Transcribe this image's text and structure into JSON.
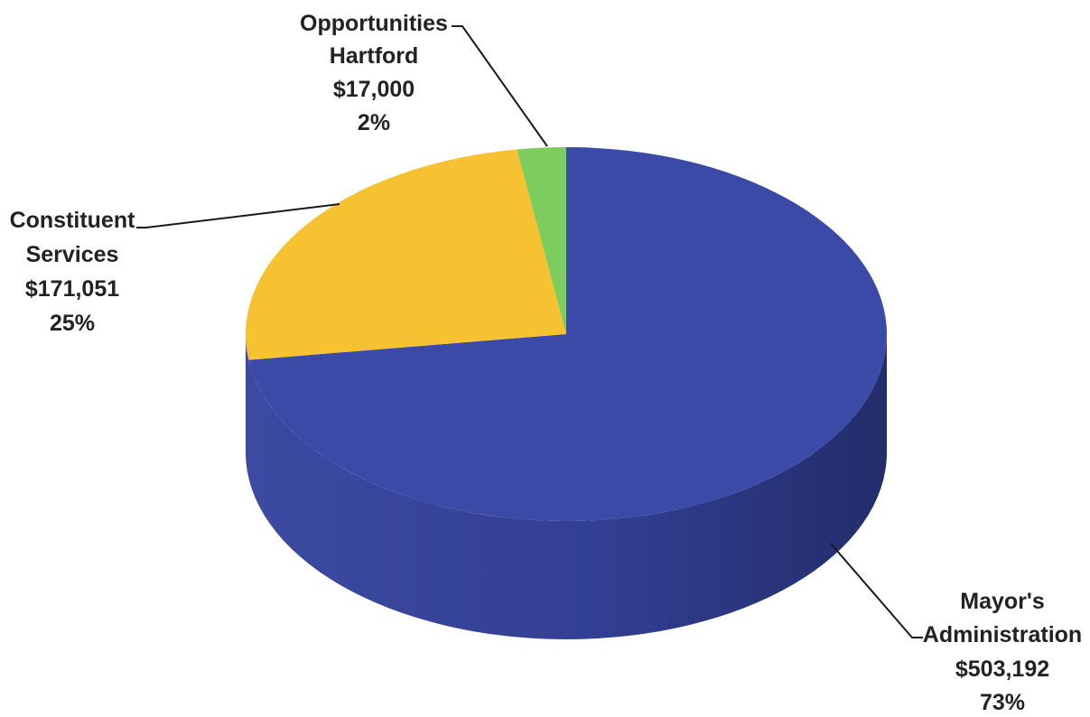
{
  "chart_data": {
    "type": "pie",
    "style": "3d",
    "slices": [
      {
        "label_lines": [
          "Mayor's",
          "Administration"
        ],
        "amount": "$503,192",
        "value": 503192,
        "percent": "73%",
        "color": "#3a4aa6"
      },
      {
        "label_lines": [
          "Constituent",
          "Services"
        ],
        "amount": "$171,051",
        "value": 171051,
        "percent": "25%",
        "color": "#f6c232"
      },
      {
        "label_lines": [
          "Opportunities",
          "Hartford"
        ],
        "amount": "$17,000",
        "value": 17000,
        "percent": "2%",
        "color": "#7ccd5e"
      }
    ]
  }
}
